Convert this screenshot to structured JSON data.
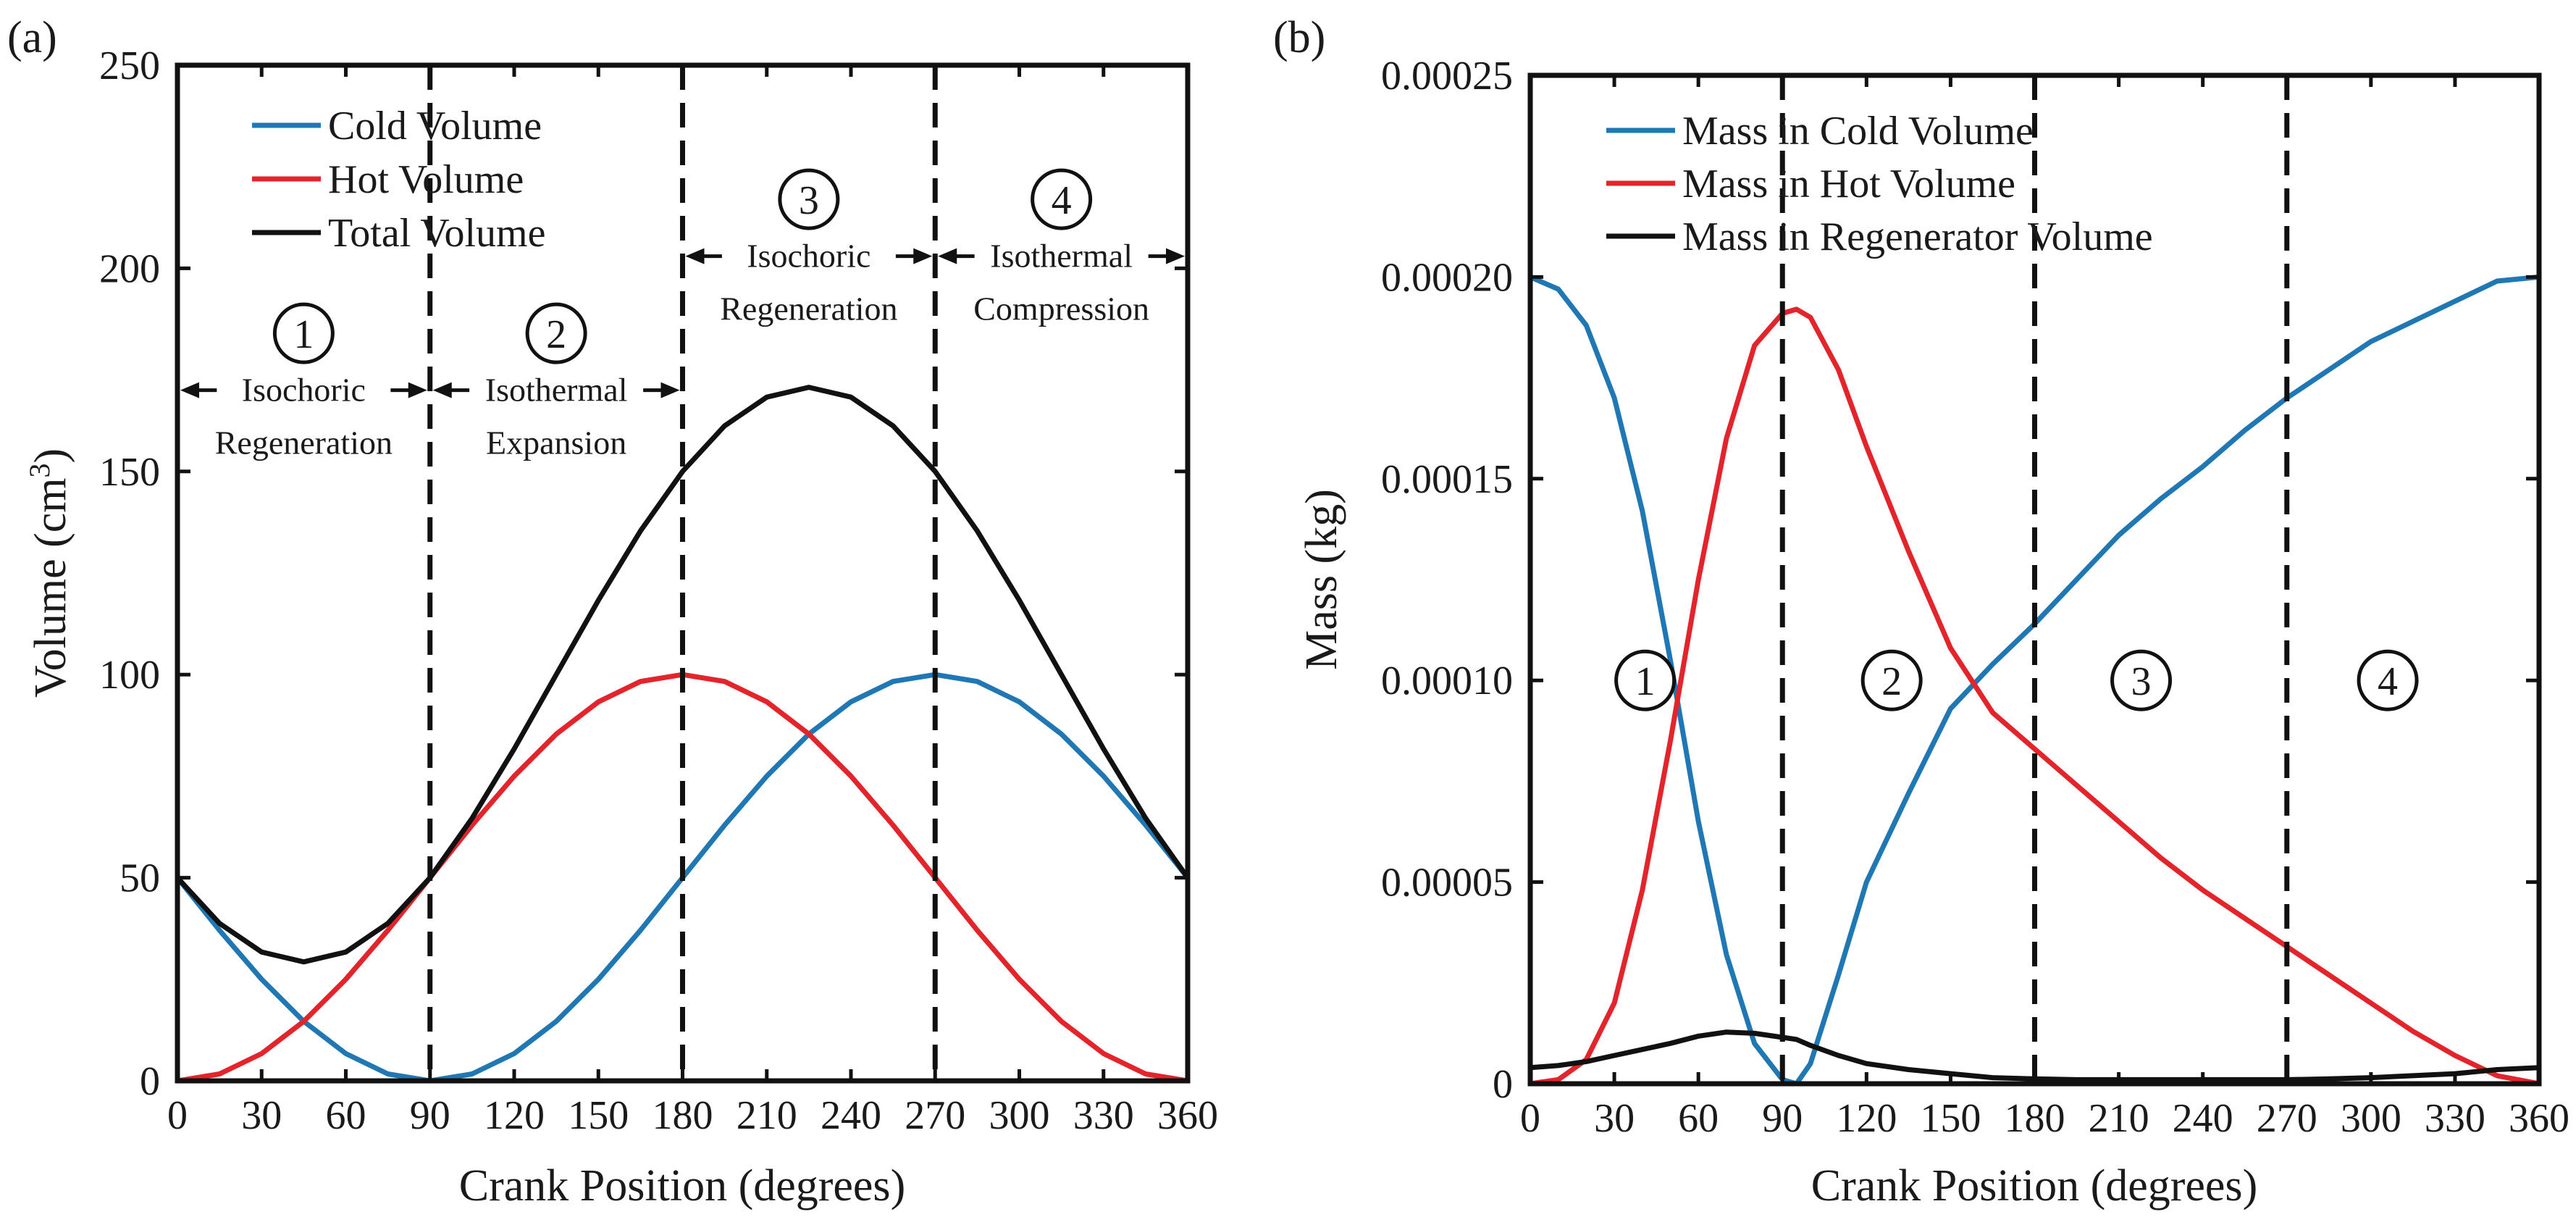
{
  "chart_data": [
    {
      "type": "line",
      "panel_label": "(a)",
      "xlabel": "Crank Position (degrees)",
      "ylabel": "Volume (cm",
      "ylabel_sup": "3",
      "ylabel_close": ")",
      "xlim": [
        0,
        360
      ],
      "ylim": [
        0,
        250
      ],
      "xticks": [
        0,
        30,
        60,
        90,
        120,
        150,
        180,
        210,
        240,
        270,
        300,
        330,
        360
      ],
      "xtick_labels": [
        "0",
        "30",
        "60",
        "90",
        "120",
        "150",
        "180",
        "210",
        "240",
        "270",
        "300",
        "330",
        "360"
      ],
      "yticks": [
        0,
        50,
        100,
        150,
        200,
        250
      ],
      "ytick_labels": [
        "0",
        "50",
        "100",
        "150",
        "200",
        "250"
      ],
      "x": [
        0,
        15,
        30,
        45,
        60,
        75,
        90,
        105,
        120,
        135,
        150,
        165,
        180,
        195,
        210,
        225,
        240,
        255,
        270,
        285,
        300,
        315,
        330,
        345,
        360
      ],
      "series": [
        {
          "name": "Cold Volume",
          "color": "#1f77b4",
          "values": [
            50,
            37.06,
            25,
            14.64,
            6.7,
            1.7,
            0,
            1.7,
            6.7,
            14.64,
            25,
            37.06,
            50,
            62.94,
            75,
            85.36,
            93.3,
            98.3,
            100,
            98.3,
            93.3,
            85.36,
            75,
            62.94,
            50
          ]
        },
        {
          "name": "Hot Volume",
          "color": "#e3242b",
          "values": [
            0,
            1.7,
            6.7,
            14.64,
            25,
            37.06,
            50,
            62.94,
            75,
            85.36,
            93.3,
            98.3,
            100,
            98.3,
            93.3,
            85.36,
            75,
            62.94,
            50,
            37.06,
            25,
            14.64,
            6.7,
            1.7,
            0
          ]
        },
        {
          "name": "Total Volume",
          "color": "#111111",
          "values": [
            50,
            38.76,
            31.7,
            29.28,
            31.7,
            38.76,
            50,
            64.64,
            81.7,
            100,
            118.3,
            135.36,
            150,
            161.24,
            168.3,
            170.72,
            168.3,
            161.24,
            150,
            135.36,
            118.3,
            100,
            81.7,
            64.64,
            50
          ]
        }
      ],
      "dividers": [
        90,
        180,
        270
      ],
      "phases": [
        {
          "number": "1",
          "line1": "Isochoric",
          "line2": "Regeneration",
          "x_from": 0,
          "x_to": 90,
          "y_arrow": 170,
          "y_num": 184,
          "y_l2": 157
        },
        {
          "number": "2",
          "line1": "Isothermal",
          "line2": "Expansion",
          "x_from": 90,
          "x_to": 180,
          "y_arrow": 170,
          "y_num": 184,
          "y_l2": 157
        },
        {
          "number": "3",
          "line1": "Isochoric",
          "line2": "Regeneration",
          "x_from": 180,
          "x_to": 270,
          "y_arrow": 203,
          "y_num": 217,
          "y_l2": 190
        },
        {
          "number": "4",
          "line1": "Isothermal",
          "line2": "Compression",
          "x_from": 270,
          "x_to": 360,
          "y_arrow": 203,
          "y_num": 217,
          "y_l2": 190
        }
      ],
      "legend_position": "top-left"
    },
    {
      "type": "line",
      "panel_label": "(b)",
      "xlabel": "Crank Position (degrees)",
      "ylabel": "Mass (kg)",
      "xlim": [
        0,
        360
      ],
      "ylim": [
        0,
        0.00025
      ],
      "xticks": [
        0,
        30,
        60,
        90,
        120,
        150,
        180,
        210,
        240,
        270,
        300,
        330,
        360
      ],
      "xtick_labels": [
        "0",
        "30",
        "60",
        "90",
        "120",
        "150",
        "180",
        "210",
        "240",
        "270",
        "300",
        "330",
        "360"
      ],
      "yticks": [
        0,
        5e-05,
        0.0001,
        0.00015,
        0.0002,
        0.00025
      ],
      "ytick_labels": [
        "0",
        "0.00005",
        "0.00010",
        "0.00015",
        "0.00020",
        "0.00025"
      ],
      "x": [
        0,
        10,
        20,
        30,
        40,
        50,
        60,
        70,
        80,
        90,
        95,
        100,
        110,
        120,
        135,
        150,
        165,
        180,
        195,
        210,
        225,
        240,
        255,
        270,
        285,
        300,
        315,
        330,
        345,
        360
      ],
      "series": [
        {
          "name": "Mass in Cold Volume",
          "color": "#1f77b4",
          "values": [
            0.0002,
            0.000197,
            0.000188,
            0.00017,
            0.000142,
            0.000105,
            6.5e-05,
            3.2e-05,
            1e-05,
            1e-06,
            0,
            5e-06,
            2.7e-05,
            5e-05,
            7.2e-05,
            9.3e-05,
            0.000104,
            0.000114,
            0.000125,
            0.000136,
            0.000145,
            0.000153,
            0.000162,
            0.00017,
            0.000177,
            0.000184,
            0.000189,
            0.000194,
            0.000199,
            0.0002
          ]
        },
        {
          "name": "Mass in Hot Volume",
          "color": "#e3242b",
          "values": [
            0,
            1e-06,
            6e-06,
            2e-05,
            4.8e-05,
            8.5e-05,
            0.000125,
            0.00016,
            0.000183,
            0.000191,
            0.000192,
            0.00019,
            0.000177,
            0.000158,
            0.000132,
            0.000108,
            9.2e-05,
            8.3e-05,
            7.4e-05,
            6.5e-05,
            5.6e-05,
            4.8e-05,
            4.1e-05,
            3.4e-05,
            2.7e-05,
            2e-05,
            1.3e-05,
            7e-06,
            2e-06,
            0
          ]
        },
        {
          "name": "Mass in Regenerator Volume",
          "color": "#111111",
          "values": [
            4e-06,
            4.5e-06,
            5.5e-06,
            7e-06,
            8.5e-06,
            1e-05,
            1.18e-05,
            1.28e-05,
            1.25e-05,
            1.15e-05,
            1.1e-05,
            9.5e-06,
            7e-06,
            5e-06,
            3.5e-06,
            2.5e-06,
            1.5e-06,
            1.2e-06,
            1e-06,
            1e-06,
            1e-06,
            1e-06,
            1e-06,
            1e-06,
            1.2e-06,
            1.5e-06,
            2e-06,
            2.5e-06,
            3.5e-06,
            4e-06
          ]
        }
      ],
      "dividers": [
        90,
        180,
        270
      ],
      "phases": [
        {
          "number": "1",
          "x_center": 41,
          "y_center": 0.0001
        },
        {
          "number": "2",
          "x_center": 129,
          "y_center": 0.0001
        },
        {
          "number": "3",
          "x_center": 218,
          "y_center": 0.0001
        },
        {
          "number": "4",
          "x_center": 306,
          "y_center": 0.0001
        }
      ],
      "legend_position": "top-left"
    }
  ]
}
